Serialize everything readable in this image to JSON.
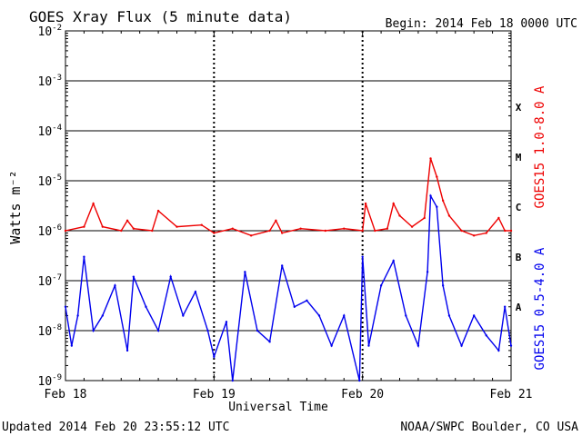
{
  "header": {
    "title": "GOES Xray Flux (5 minute data)",
    "begin": "Begin:  2014 Feb 18 0000 UTC"
  },
  "footer": {
    "updated": "Updated 2014 Feb 20 23:55:12 UTC",
    "source": "NOAA/SWPC Boulder, CO USA"
  },
  "colors": {
    "long_channel": "#ee0000",
    "short_channel": "#0000ee",
    "grid": "#000000",
    "background": "#ffffff"
  },
  "chart_data": {
    "type": "line",
    "title": "GOES Xray Flux (5 minute data)",
    "xlabel": "Universal Time",
    "ylabel": "Watts m⁻²",
    "y_scale": "log",
    "ylim": [
      1e-09,
      0.01
    ],
    "xlim": [
      "2014-02-18 00:00",
      "2014-02-21 00:00"
    ],
    "x_ticks": [
      {
        "label": "Feb 18",
        "x": "2014-02-18 00:00"
      },
      {
        "label": "Feb 19",
        "x": "2014-02-19 00:00"
      },
      {
        "label": "Feb 20",
        "x": "2014-02-20 00:00"
      },
      {
        "label": "Feb 21",
        "x": "2014-02-21 00:00"
      }
    ],
    "y_ticks": [
      {
        "mantissa": "10",
        "exp": "-2",
        "value": 0.01
      },
      {
        "mantissa": "10",
        "exp": "-3",
        "value": 0.001
      },
      {
        "mantissa": "10",
        "exp": "-4",
        "value": 0.0001
      },
      {
        "mantissa": "10",
        "exp": "-5",
        "value": 1e-05
      },
      {
        "mantissa": "10",
        "exp": "-6",
        "value": 1e-06
      },
      {
        "mantissa": "10",
        "exp": "-7",
        "value": 1e-07
      },
      {
        "mantissa": "10",
        "exp": "-8",
        "value": 1e-08
      },
      {
        "mantissa": "10",
        "exp": "-9",
        "value": 1e-09
      }
    ],
    "flare_classes": [
      {
        "label": "X",
        "value": 0.0003
      },
      {
        "label": "M",
        "value": 3e-05
      },
      {
        "label": "C",
        "value": 3e-06
      },
      {
        "label": "B",
        "value": 3e-07
      },
      {
        "label": "A",
        "value": 3e-08
      }
    ],
    "grid": "horizontal at each decade; dotted vertical at day boundaries",
    "legend_placement": "right side, vertical",
    "series": [
      {
        "name": "GOES15 1.0-8.0 A",
        "color": "#ee0000",
        "x": [
          "2014-02-18 00:00",
          "2014-02-18 03:00",
          "2014-02-18 04:30",
          "2014-02-18 06:00",
          "2014-02-18 09:00",
          "2014-02-18 10:00",
          "2014-02-18 11:00",
          "2014-02-18 14:00",
          "2014-02-18 15:00",
          "2014-02-18 18:00",
          "2014-02-18 22:00",
          "2014-02-19 00:00",
          "2014-02-19 03:00",
          "2014-02-19 06:00",
          "2014-02-19 09:00",
          "2014-02-19 10:00",
          "2014-02-19 11:00",
          "2014-02-19 14:00",
          "2014-02-19 18:00",
          "2014-02-19 21:00",
          "2014-02-20 00:00",
          "2014-02-20 00:30",
          "2014-02-20 02:00",
          "2014-02-20 04:00",
          "2014-02-20 05:00",
          "2014-02-20 06:00",
          "2014-02-20 08:00",
          "2014-02-20 10:00",
          "2014-02-20 11:00",
          "2014-02-20 12:00",
          "2014-02-20 13:00",
          "2014-02-20 14:00",
          "2014-02-20 16:00",
          "2014-02-20 18:00",
          "2014-02-20 20:00",
          "2014-02-20 22:00",
          "2014-02-20 23:00",
          "2014-02-21 00:00"
        ],
        "values": [
          1e-06,
          1.2e-06,
          3.5e-06,
          1.2e-06,
          1e-06,
          1.6e-06,
          1.1e-06,
          1e-06,
          2.5e-06,
          1.2e-06,
          1.3e-06,
          9e-07,
          1.1e-06,
          8e-07,
          1e-06,
          1.6e-06,
          9e-07,
          1.1e-06,
          1e-06,
          1.1e-06,
          1e-06,
          3.5e-06,
          1e-06,
          1.1e-06,
          3.5e-06,
          2e-06,
          1.2e-06,
          1.8e-06,
          2.8e-05,
          1.2e-05,
          4e-06,
          2e-06,
          1e-06,
          8e-07,
          9e-07,
          1.8e-06,
          1e-06,
          1e-06
        ]
      },
      {
        "name": "GOES15 0.5-4.0 A",
        "color": "#0000ee",
        "x": [
          "2014-02-18 00:00",
          "2014-02-18 01:00",
          "2014-02-18 02:00",
          "2014-02-18 03:00",
          "2014-02-18 04:30",
          "2014-02-18 06:00",
          "2014-02-18 08:00",
          "2014-02-18 10:00",
          "2014-02-18 11:00",
          "2014-02-18 13:00",
          "2014-02-18 15:00",
          "2014-02-18 17:00",
          "2014-02-18 19:00",
          "2014-02-18 21:00",
          "2014-02-18 23:00",
          "2014-02-19 00:00",
          "2014-02-19 02:00",
          "2014-02-19 03:00",
          "2014-02-19 05:00",
          "2014-02-19 07:00",
          "2014-02-19 09:00",
          "2014-02-19 11:00",
          "2014-02-19 13:00",
          "2014-02-19 15:00",
          "2014-02-19 17:00",
          "2014-02-19 19:00",
          "2014-02-19 21:00",
          "2014-02-19 23:30",
          "2014-02-20 00:00",
          "2014-02-20 01:00",
          "2014-02-20 03:00",
          "2014-02-20 05:00",
          "2014-02-20 07:00",
          "2014-02-20 09:00",
          "2014-02-20 10:30",
          "2014-02-20 11:00",
          "2014-02-20 12:00",
          "2014-02-20 13:00",
          "2014-02-20 14:00",
          "2014-02-20 16:00",
          "2014-02-20 18:00",
          "2014-02-20 20:00",
          "2014-02-20 22:00",
          "2014-02-20 23:00",
          "2014-02-21 00:00"
        ],
        "values": [
          3e-08,
          5e-09,
          2e-08,
          3e-07,
          1e-08,
          2e-08,
          8e-08,
          4e-09,
          1.2e-07,
          3e-08,
          1e-08,
          1.2e-07,
          2e-08,
          6e-08,
          1e-08,
          3e-09,
          1.5e-08,
          1e-09,
          1.5e-07,
          1e-08,
          6e-09,
          2e-07,
          3e-08,
          4e-08,
          2e-08,
          5e-09,
          2e-08,
          1e-09,
          3e-07,
          5e-09,
          8e-08,
          2.5e-07,
          2e-08,
          5e-09,
          1.5e-07,
          5e-06,
          3e-06,
          8e-08,
          2e-08,
          5e-09,
          2e-08,
          8e-09,
          4e-09,
          3e-08,
          5e-09
        ]
      }
    ]
  }
}
